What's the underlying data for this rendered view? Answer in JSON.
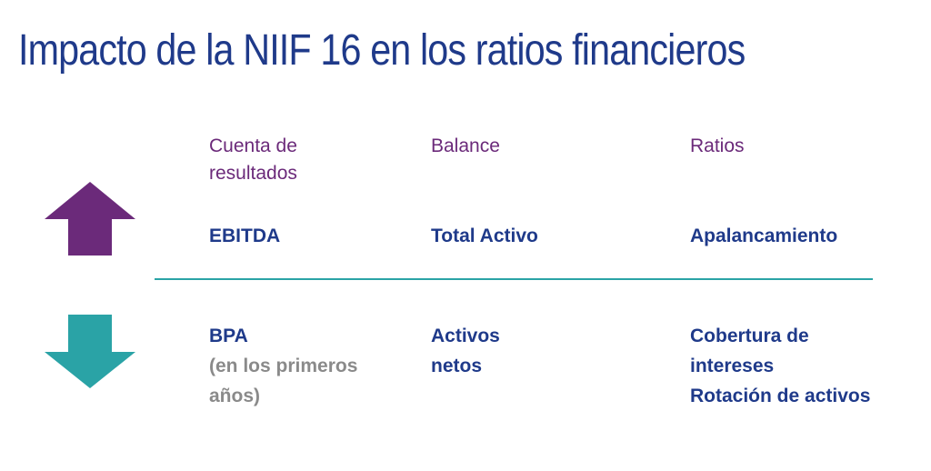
{
  "slide": {
    "title": "Impacto de la NIIF 16 en los ratios financieros"
  },
  "columns": {
    "income_statement": "Cuenta de\nresultados",
    "balance": "Balance",
    "ratios": "Ratios"
  },
  "increase_row": {
    "icon": "arrow-up-icon",
    "color": "#6b2a7a",
    "income_statement": "EBITDA",
    "balance": "Total Activo",
    "ratios": "Apalancamiento"
  },
  "decrease_row": {
    "icon": "arrow-down-icon",
    "color": "#2aa3a6",
    "income_statement": "BPA",
    "income_statement_note": "(en los primeros\naños)",
    "balance": "Activos\nnetos",
    "ratios_1": "Cobertura de\nintereses",
    "ratios_2": "Rotación de activos"
  }
}
